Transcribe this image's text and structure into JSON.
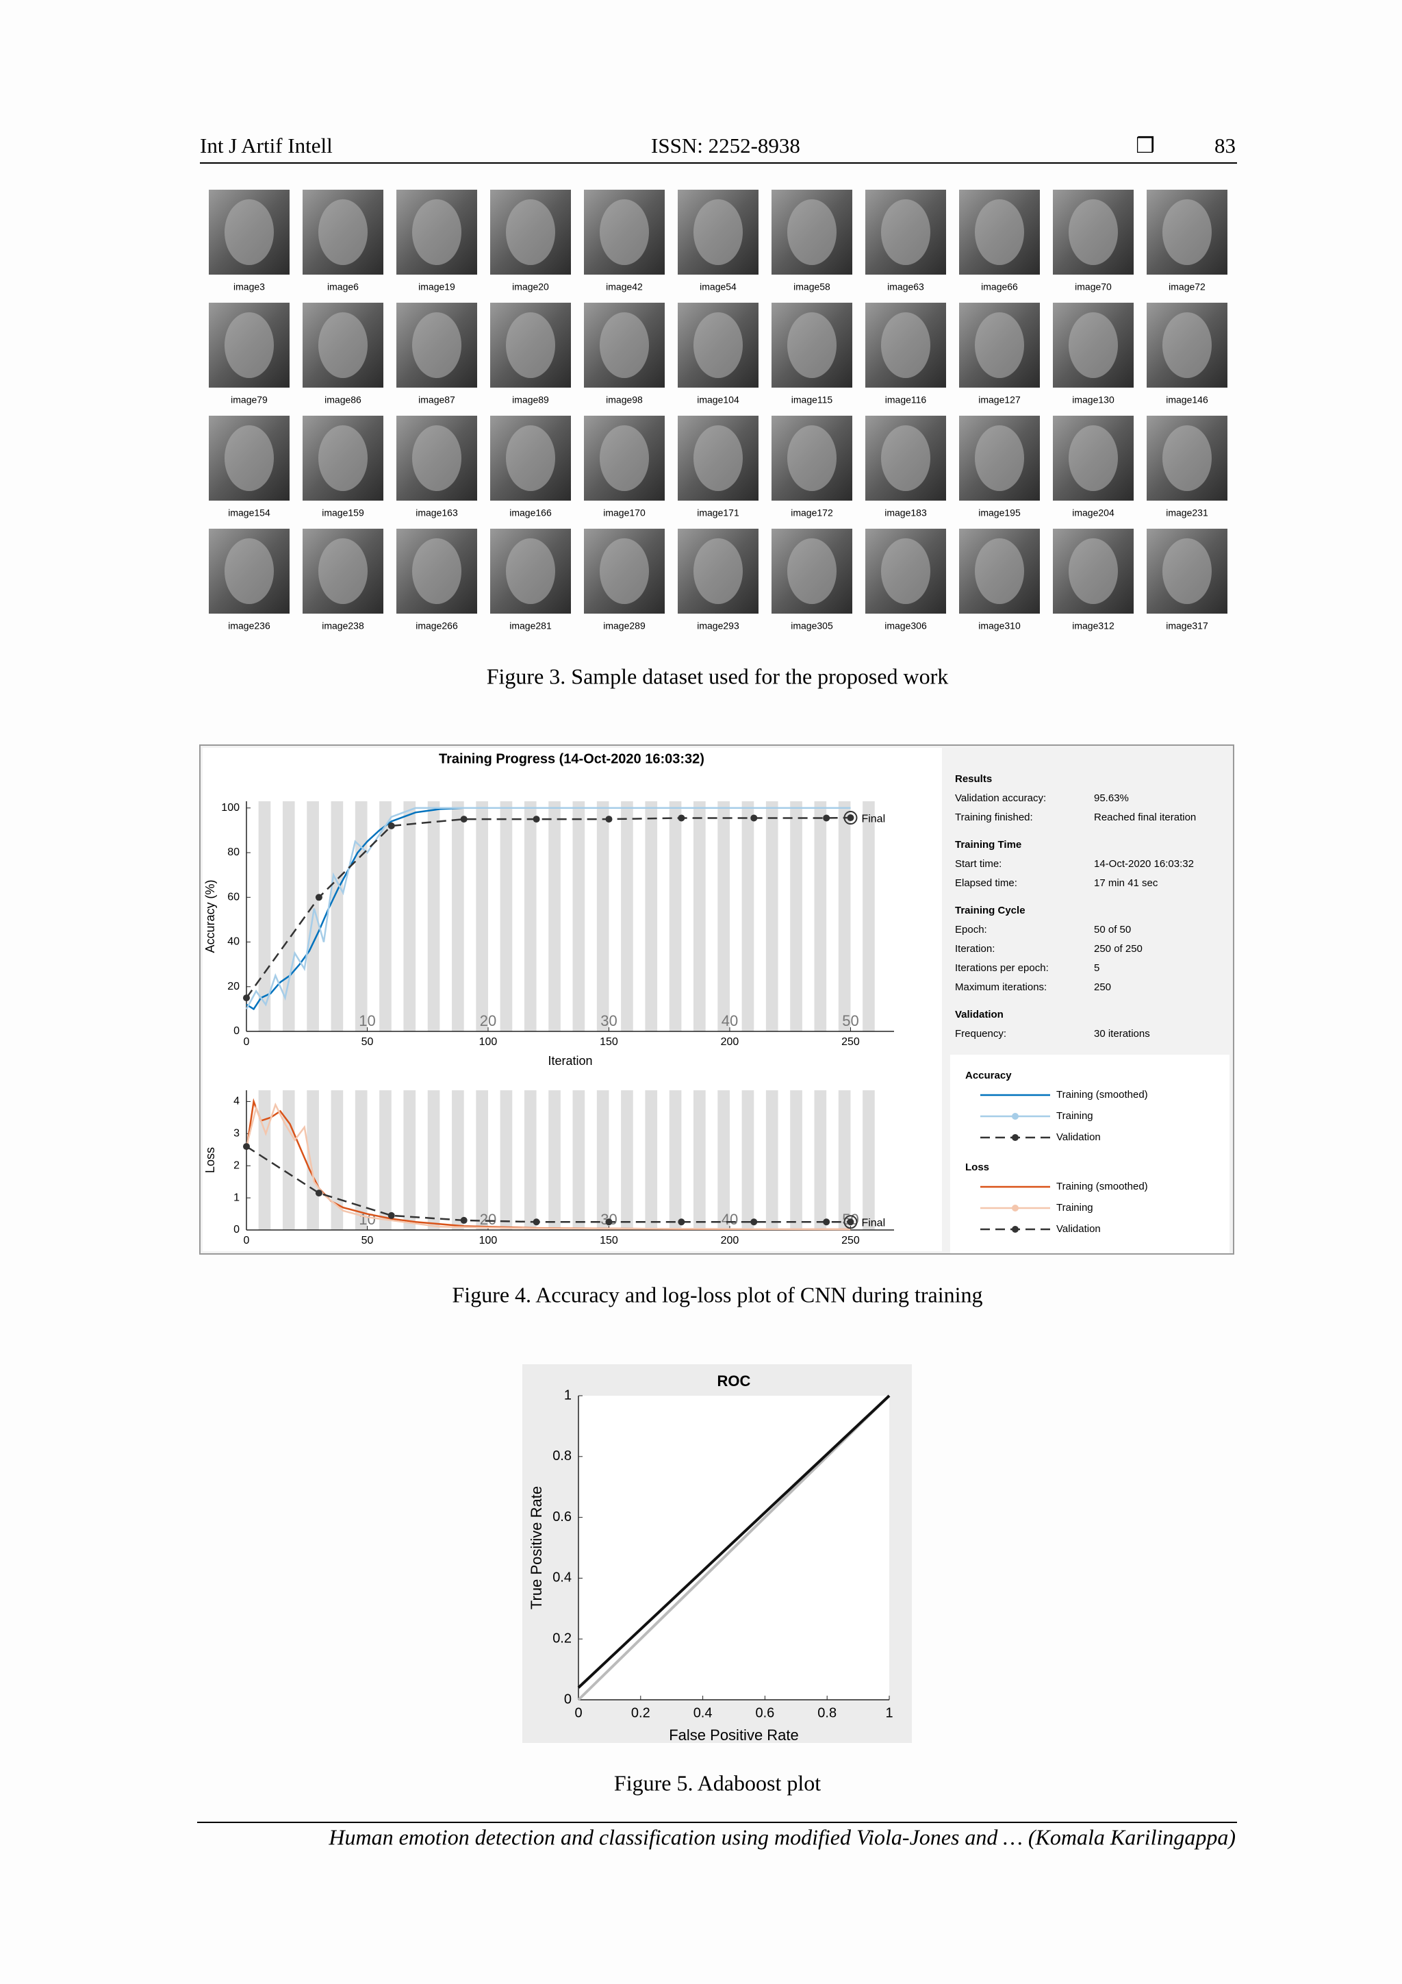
{
  "header": {
    "journal": "Int J Artif Intell",
    "issn": "ISSN: 2252-8938",
    "symbol": "❒",
    "page": "83"
  },
  "figure3": {
    "labels": [
      "image3",
      "image6",
      "image19",
      "image20",
      "image42",
      "image54",
      "image58",
      "image63",
      "image66",
      "image70",
      "image72",
      "image79",
      "image86",
      "image87",
      "image89",
      "image98",
      "image104",
      "image115",
      "image116",
      "image127",
      "image130",
      "image146",
      "image154",
      "image159",
      "image163",
      "image166",
      "image170",
      "image171",
      "image172",
      "image183",
      "image195",
      "image204",
      "image231",
      "image236",
      "image238",
      "image266",
      "image281",
      "image289",
      "image293",
      "image305",
      "image306",
      "image310",
      "image312",
      "image317"
    ],
    "caption": "Figure 3. Sample dataset used for the proposed work"
  },
  "figure4": {
    "title": "Training Progress (14-Oct-2020 16:03:32)",
    "final_label": "Final",
    "accuracy": {
      "type": "line",
      "ylabel": "Accuracy (%)",
      "xlabel": "Iteration",
      "xlim": [
        0,
        268
      ],
      "ylim": [
        0,
        103
      ],
      "xticks": [
        0,
        50,
        100,
        150,
        200,
        250
      ],
      "yticks": [
        0,
        20,
        40,
        60,
        80,
        100
      ],
      "epoch_ticks": [
        {
          "value": 50,
          "label": "10"
        },
        {
          "value": 100,
          "label": "20"
        },
        {
          "value": 150,
          "label": "30"
        },
        {
          "value": 200,
          "label": "40"
        },
        {
          "value": 250,
          "label": "50"
        }
      ],
      "series": [
        {
          "name": "Training (smoothed)",
          "color": "#0072bd",
          "x": [
            0,
            3,
            6,
            10,
            14,
            18,
            22,
            26,
            30,
            34,
            38,
            42,
            46,
            50,
            55,
            60,
            65,
            70,
            80,
            90,
            100,
            150,
            200,
            250
          ],
          "values": [
            12,
            10,
            15,
            17,
            22,
            25,
            30,
            36,
            45,
            55,
            64,
            72,
            80,
            85,
            90,
            94,
            96,
            98,
            99.5,
            100,
            100,
            100,
            100,
            100
          ]
        },
        {
          "name": "Training",
          "color": "#a6cde8",
          "x": [
            0,
            4,
            8,
            12,
            16,
            20,
            24,
            28,
            32,
            36,
            40,
            45,
            50,
            60,
            70,
            90,
            120,
            250
          ],
          "values": [
            10,
            18,
            12,
            25,
            15,
            35,
            28,
            55,
            40,
            70,
            62,
            85,
            80,
            96,
            100,
            100,
            100,
            100
          ]
        },
        {
          "name": "Validation",
          "color": "#333333",
          "dashed": true,
          "markers": true,
          "x": [
            0,
            30,
            60,
            90,
            120,
            150,
            180,
            210,
            240,
            250
          ],
          "values": [
            15,
            60,
            92,
            95,
            95,
            95,
            95.5,
            95.5,
            95.5,
            95.63
          ]
        }
      ]
    },
    "loss": {
      "type": "line",
      "ylabel": "Loss",
      "xlim": [
        0,
        268
      ],
      "ylim": [
        0,
        4.35
      ],
      "xticks": [
        0,
        50,
        100,
        150,
        200,
        250
      ],
      "yticks": [
        0,
        1,
        2,
        3,
        4
      ],
      "epoch_ticks": [
        {
          "value": 50,
          "label": "10"
        },
        {
          "value": 100,
          "label": "20"
        },
        {
          "value": 150,
          "label": "30"
        },
        {
          "value": 200,
          "label": "40"
        },
        {
          "value": 250,
          "label": "50"
        }
      ],
      "series": [
        {
          "name": "Training (smoothed)",
          "color": "#d95319",
          "x": [
            0,
            3,
            6,
            10,
            14,
            18,
            22,
            26,
            30,
            35,
            40,
            50,
            60,
            70,
            90,
            120,
            180,
            250
          ],
          "values": [
            2.5,
            4.0,
            3.4,
            3.5,
            3.7,
            3.3,
            2.6,
            1.9,
            1.3,
            0.9,
            0.7,
            0.5,
            0.35,
            0.25,
            0.12,
            0.06,
            0.03,
            0.02
          ]
        },
        {
          "name": "Training",
          "color": "#f4c6ad",
          "x": [
            0,
            4,
            8,
            12,
            16,
            20,
            24,
            28,
            32,
            40,
            50,
            60,
            80,
            120,
            250
          ],
          "values": [
            2.6,
            3.8,
            3.0,
            3.9,
            3.3,
            2.8,
            3.2,
            1.5,
            1.1,
            0.6,
            0.4,
            0.3,
            0.1,
            0.05,
            0.02
          ]
        },
        {
          "name": "Validation",
          "color": "#333333",
          "dashed": true,
          "markers": true,
          "x": [
            0,
            30,
            60,
            90,
            120,
            150,
            180,
            210,
            240,
            250
          ],
          "values": [
            2.6,
            1.15,
            0.45,
            0.3,
            0.25,
            0.25,
            0.25,
            0.25,
            0.25,
            0.25
          ]
        }
      ]
    },
    "panel": [
      {
        "heading": "Results",
        "rows": [
          [
            "Validation accuracy:",
            "95.63%"
          ],
          [
            "Training finished:",
            "Reached final iteration"
          ]
        ]
      },
      {
        "heading": "Training Time",
        "rows": [
          [
            "Start time:",
            "14-Oct-2020 16:03:32"
          ],
          [
            "Elapsed time:",
            "17 min 41 sec"
          ]
        ]
      },
      {
        "heading": "Training Cycle",
        "rows": [
          [
            "Epoch:",
            "50 of 50"
          ],
          [
            "Iteration:",
            "250 of 250"
          ],
          [
            "Iterations per epoch:",
            "5"
          ],
          [
            "Maximum iterations:",
            "250"
          ]
        ]
      },
      {
        "heading": "Validation",
        "rows": [
          [
            "Frequency:",
            "30 iterations"
          ]
        ]
      }
    ],
    "legend_headings": [
      "Accuracy",
      "Loss"
    ],
    "caption": "Figure 4. Accuracy and log-loss plot of CNN during training"
  },
  "figure5": {
    "type": "line",
    "title": "ROC",
    "xlabel": "False Positive Rate",
    "ylabel": "True Positive Rate",
    "xlim": [
      0,
      1
    ],
    "ylim": [
      0,
      1
    ],
    "xticks": [
      0,
      0.2,
      0.4,
      0.6,
      0.8,
      1
    ],
    "yticks": [
      0,
      0.2,
      0.4,
      0.6,
      0.8,
      1
    ],
    "series": [
      {
        "color": "#bbbbbb",
        "x": [
          0,
          1
        ],
        "values": [
          0,
          1
        ]
      },
      {
        "color": "#111111",
        "x": [
          0,
          1
        ],
        "values": [
          0.04,
          1
        ]
      }
    ],
    "caption": "Figure 5. Adaboost plot"
  },
  "footer": "Human emotion detection and classification using modified Viola-Jones and … (Komala Karilingappa)"
}
